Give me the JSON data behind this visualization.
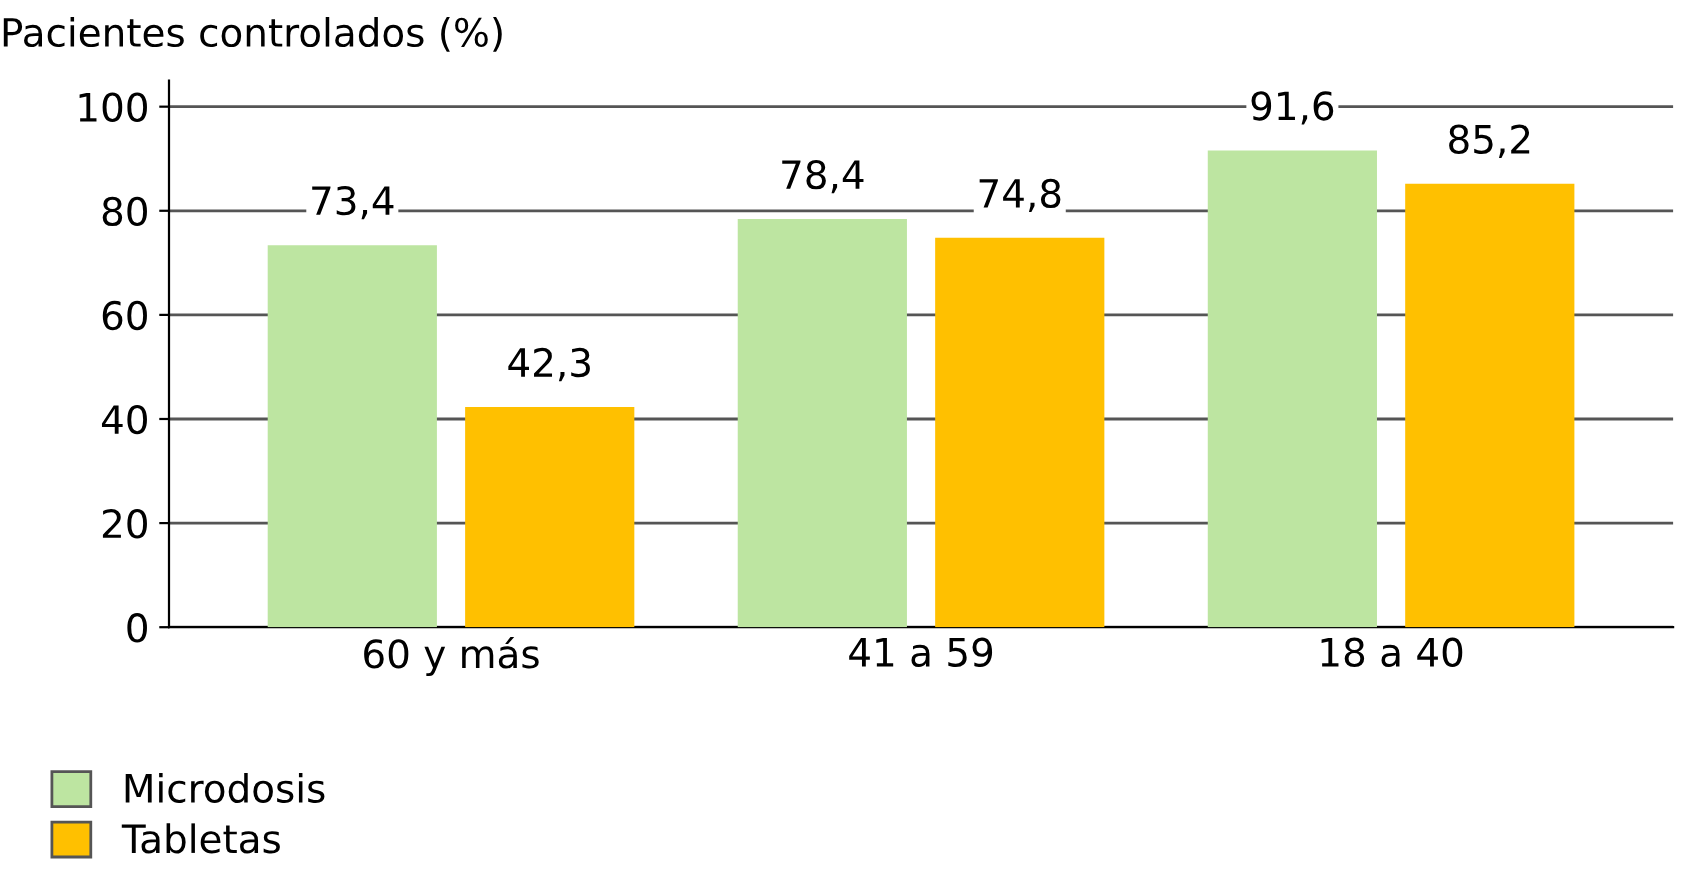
{
  "chart_data": {
    "type": "bar",
    "ylabel": "Pacientes controlados (%)",
    "categories": [
      "60 y más",
      "41 a 59",
      "18 a 40"
    ],
    "series": [
      {
        "name": "Microdosis",
        "color": "#bde5a1",
        "values": [
          73.4,
          78.4,
          91.6
        ],
        "value_labels": [
          "73,4",
          "78,4",
          "91,6"
        ]
      },
      {
        "name": "Tabletas",
        "color": "#ffc000",
        "values": [
          42.3,
          74.8,
          85.2
        ],
        "value_labels": [
          "42,3",
          "74,8",
          "85,2"
        ]
      }
    ],
    "ylim": [
      0,
      105
    ],
    "yticks": [
      0,
      20,
      40,
      60,
      80,
      100
    ],
    "grid": "y",
    "legend": "bottom left"
  }
}
